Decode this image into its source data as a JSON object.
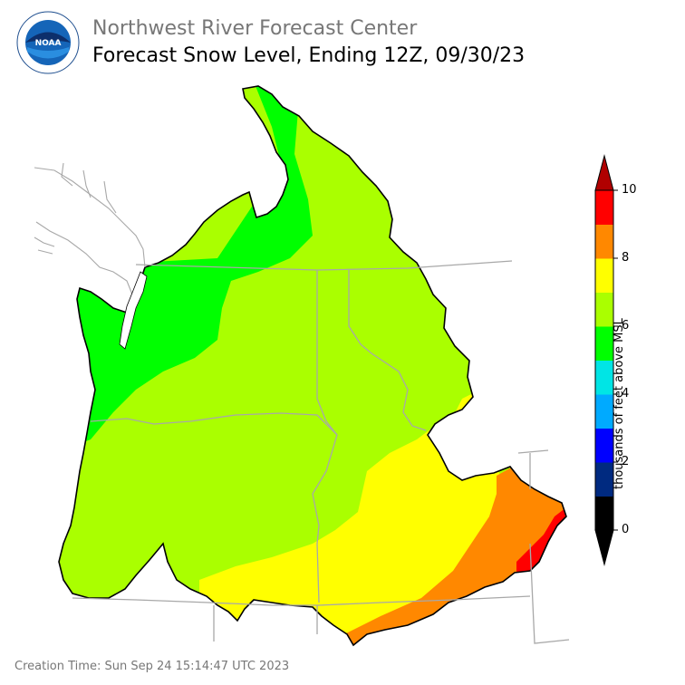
{
  "header": {
    "org_title": "Northwest River Forecast Center",
    "title": "Forecast Snow Level, Ending 12Z, 09/30/23"
  },
  "logo": {
    "name": "noaa-logo",
    "text": "NOAA"
  },
  "map": {
    "region": "Pacific Northwest / Columbia Basin",
    "zones": [
      {
        "name": "zone-6-7k",
        "color": "#00ff00"
      },
      {
        "name": "zone-7-8k",
        "color": "#aaff00"
      },
      {
        "name": "zone-8-9k",
        "color": "#ffff00"
      },
      {
        "name": "zone-9-10k",
        "color": "#ff8800"
      },
      {
        "name": "zone-10k",
        "color": "#ff0000"
      }
    ]
  },
  "colorbar": {
    "label": "thousands of feet above MSL",
    "ticks": [
      "0",
      "2",
      "4",
      "6",
      "8",
      "10"
    ],
    "bands": [
      "#000000",
      "#002a80",
      "#0000ff",
      "#00aaff",
      "#00e5e5",
      "#00ff00",
      "#aaff00",
      "#ffff00",
      "#ff8800",
      "#ff0000"
    ],
    "under_color": "#000000",
    "over_color": "#b00000",
    "range": [
      0,
      10
    ]
  },
  "footer": {
    "creation_time": "Creation Time: Sun Sep 24 15:14:47 UTC 2023"
  }
}
